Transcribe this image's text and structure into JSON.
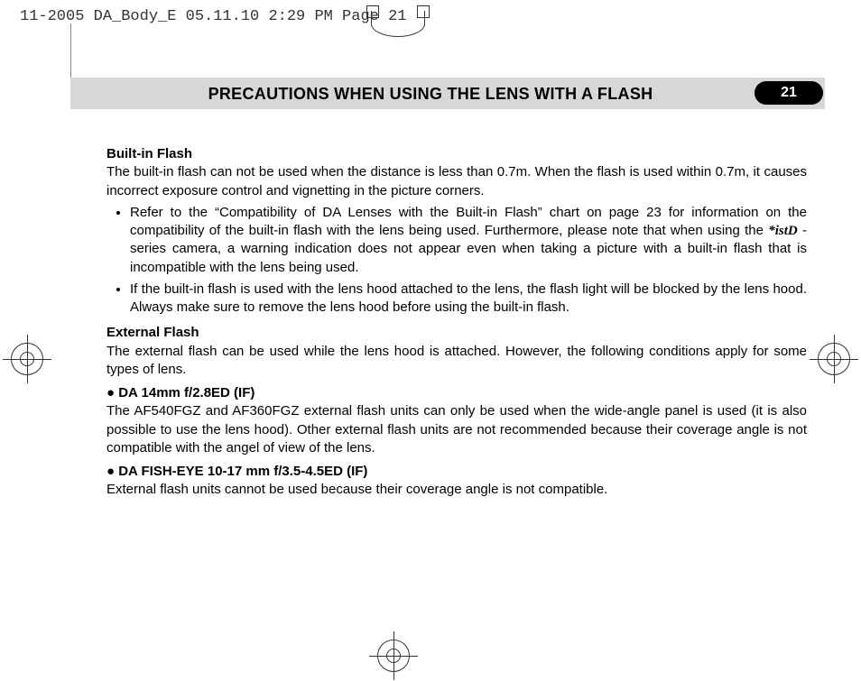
{
  "meta": {
    "slugline": "11-2005 DA_Body_E  05.11.10 2:29 PM  Page 21"
  },
  "header": {
    "title": "PRECAUTIONS WHEN USING THE LENS WITH A FLASH",
    "page": "21"
  },
  "body": {
    "sec1_head": "Built-in Flash",
    "sec1_p": "The built-in flash can not be used when the distance is less than 0.7m. When the flash is used within 0.7m, it causes incorrect exposure control and vignetting in the picture corners.",
    "bul1a": "Refer to the “Compatibility of DA Lenses with the Built-in Flash” chart on page 23 for information on the compatibility of the built-in flash with the lens being used. Furthermore, please note that when using the ",
    "bul1a_brand": "*istD",
    "bul1a_tail": " -series camera, a warning indication does not appear even when taking a picture with a built-in flash that is incompatible with the lens being used.",
    "bul1b": "If the built-in flash is used with the lens hood attached to the lens, the flash light will be blocked by the lens hood. Always make sure to remove the lens hood before using the built-in flash.",
    "sec2_head": "External Flash",
    "sec2_p": "The external flash can be used while the lens hood is attached. However, the following conditions apply for some types of lens.",
    "lens1_head": "● DA 14mm f/2.8ED (IF)",
    "lens1_p": "The AF540FGZ and AF360FGZ external flash units can only be used when the wide-angle panel is used (it is also possible to use the lens hood). Other external flash units are not recommended because their coverage angle is not compatible with the angel of view of the lens.",
    "lens2_head": "● DA FISH-EYE 10-17 mm f/3.5-4.5ED (IF)",
    "lens2_p": "External flash units cannot be used because their coverage angle is not compatible."
  },
  "colors": {
    "band": "#d7d7d7",
    "badge_bg": "#000000",
    "badge_fg": "#ffffff"
  }
}
